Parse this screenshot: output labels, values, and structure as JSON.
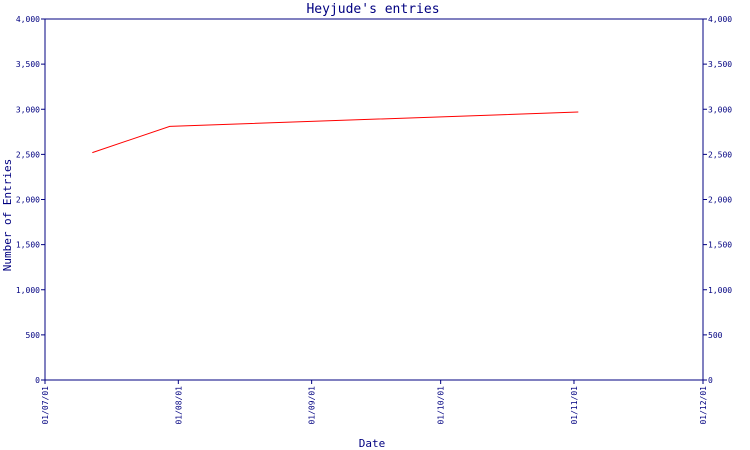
{
  "chart_data": {
    "type": "line",
    "title": "Heyjude's entries",
    "xlabel": "Date",
    "ylabel": "Number of Entries",
    "ylim": [
      0,
      4000
    ],
    "x_ticks": [
      "01/07/01",
      "01/08/01",
      "01/09/01",
      "01/10/01",
      "01/11/01",
      "01/12/01"
    ],
    "y_ticks": [
      "0",
      "500",
      "1,000",
      "1,500",
      "2,000",
      "2,500",
      "3,000",
      "3,500",
      "4,000"
    ],
    "y_tick_values": [
      0,
      500,
      1000,
      1500,
      2000,
      2500,
      3000,
      3500,
      4000
    ],
    "xlim": [
      "2001-07-01",
      "2001-12-01"
    ],
    "series": [
      {
        "x": [
          "2001-07-12",
          "2001-07-30",
          "2001-11-02"
        ],
        "values": [
          2520,
          2810,
          2970
        ]
      }
    ],
    "colors": {
      "axis": "#000080",
      "line": "#ff0000",
      "text": "#000080"
    },
    "grid": false,
    "y_axis_right": true
  }
}
